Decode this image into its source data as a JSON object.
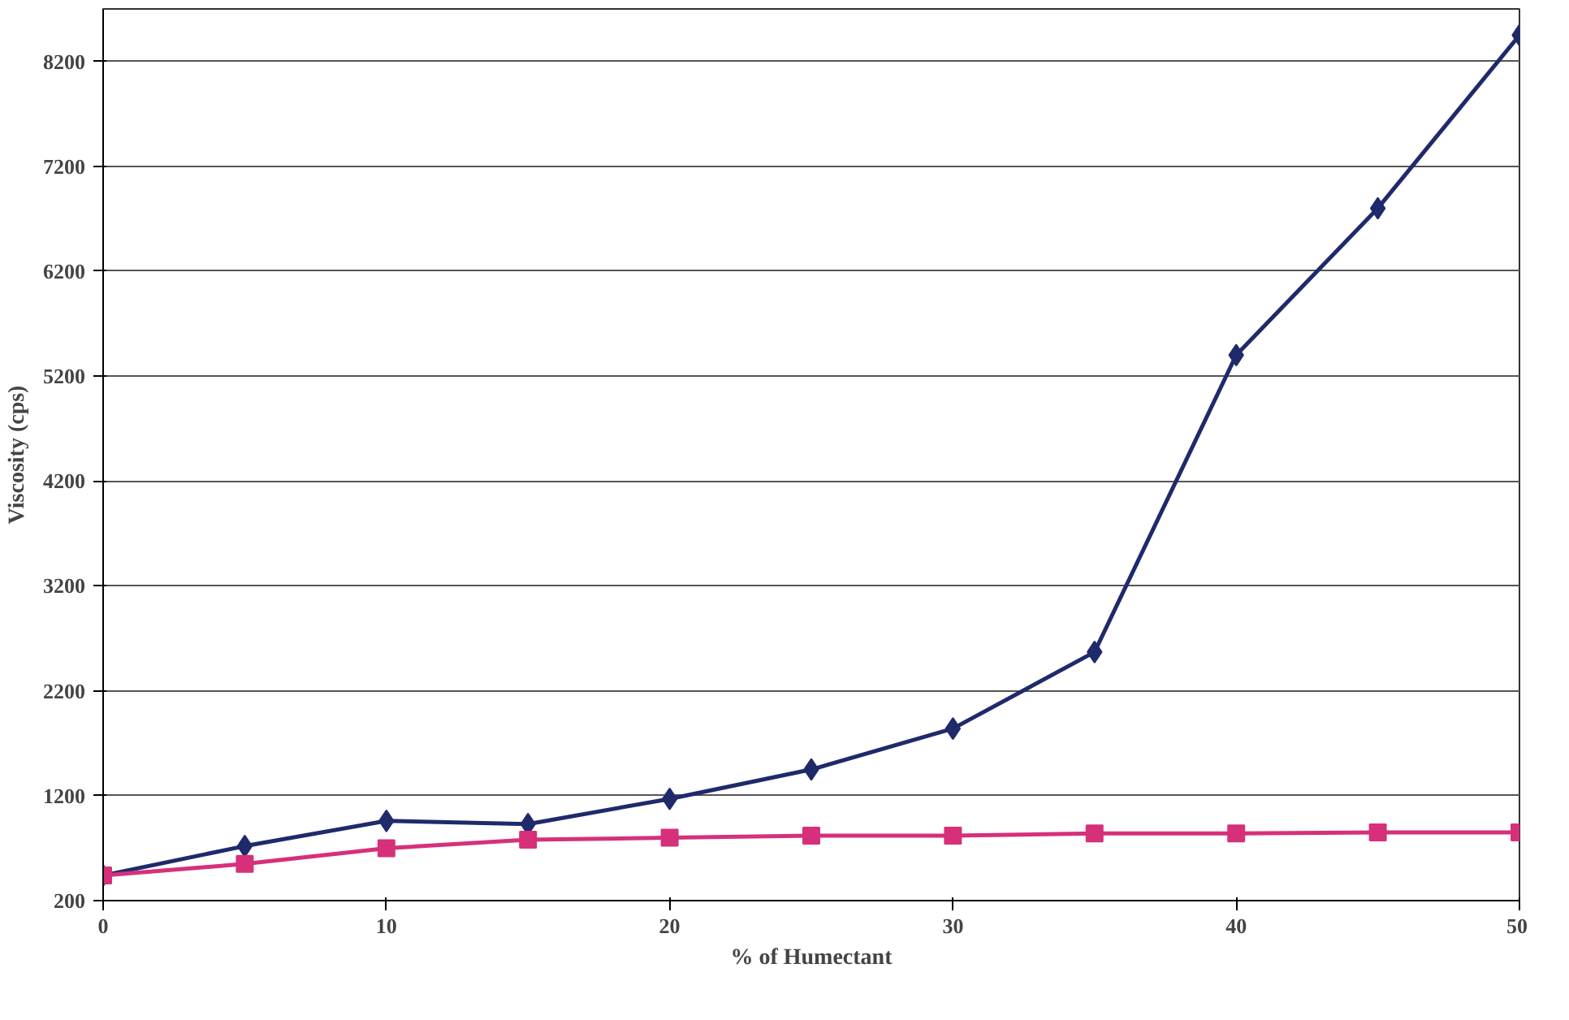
{
  "chart_data": {
    "type": "line",
    "xlabel": "% of Humectant",
    "ylabel": "Viscosity (cps)",
    "x": [
      0,
      5,
      10,
      15,
      20,
      25,
      30,
      35,
      40,
      45,
      50
    ],
    "xlim": [
      0,
      50
    ],
    "xticks": [
      0,
      10,
      20,
      30,
      40,
      50
    ],
    "ylim": [
      200,
      8700
    ],
    "yticks": [
      200,
      1200,
      2200,
      3200,
      4200,
      5200,
      6200,
      7200,
      8200
    ],
    "grid": "y",
    "line_style": "solid",
    "series": [
      {
        "color": "#1f2a6b",
        "marker": "diamond",
        "values": [
          440,
          720,
          960,
          930,
          1170,
          1450,
          1840,
          2570,
          5400,
          6800,
          8450
        ]
      },
      {
        "color": "#d6307a",
        "marker": "square",
        "values": [
          440,
          550,
          700,
          780,
          800,
          820,
          820,
          840,
          840,
          850,
          850
        ]
      }
    ]
  }
}
